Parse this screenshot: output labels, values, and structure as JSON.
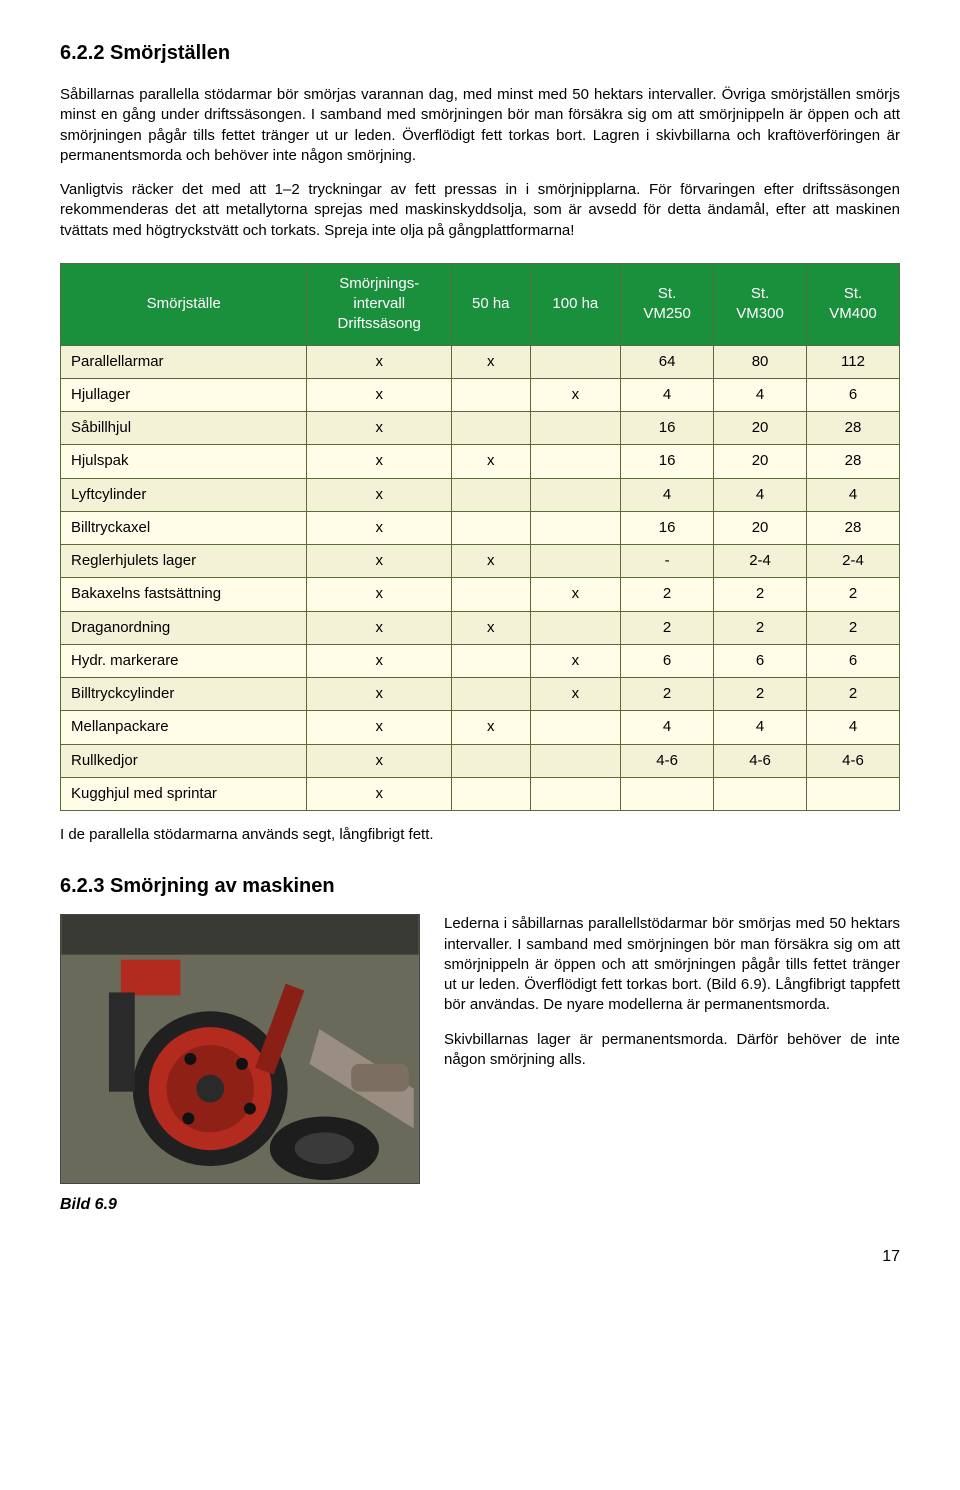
{
  "section": {
    "heading": "6.2.2  Smörjställen",
    "para1": "Såbillarnas parallella stödarmar bör smörjas varannan dag, med minst med 50 hektars intervaller. Övriga smörjställen smörjs minst en gång under driftssäsongen. I samband med smörjningen bör man försäkra sig om att smörjnippeln är öppen och att smörjningen pågår tills fettet tränger ut ur leden. Överflödigt fett torkas bort. Lagren i skivbillarna och kraftöverföringen är permanentsmorda och behöver inte någon smörjning.",
    "para2": "Vanligtvis räcker det med att 1–2 tryckningar av fett pressas in i smörjnipplarna. För förvaringen efter driftssäsongen rekommenderas det att metallytorna sprejas med maskinskyddsolja, som är avsedd för detta ändamål, efter att maskinen tvättats med högtryckstvätt och torkats. Spreja inte olja på gångplattformarna!"
  },
  "table": {
    "headers": {
      "c0": "Smörjställe",
      "c1": "Smörjnings-\nintervall\nDriftssäsong",
      "c2": "50 ha",
      "c3": "100 ha",
      "c4": "St.\nVM250",
      "c5": "St.\nVM300",
      "c6": "St.\nVM400"
    },
    "header_bg": "#1a8f3c",
    "header_fg": "#ffffff",
    "row_alt_colors": [
      "#f3f1d6",
      "#fffde8"
    ],
    "border_color": "#5a6b3a",
    "rows": [
      {
        "label": "Parallellarmar",
        "c1": "x",
        "c2": "x",
        "c3": "",
        "vm250": "64",
        "vm300": "80",
        "vm400": "112"
      },
      {
        "label": "Hjullager",
        "c1": "x",
        "c2": "",
        "c3": "x",
        "vm250": "4",
        "vm300": "4",
        "vm400": "6"
      },
      {
        "label": "Såbillhjul",
        "c1": "x",
        "c2": "",
        "c3": "",
        "vm250": "16",
        "vm300": "20",
        "vm400": "28"
      },
      {
        "label": "Hjulspak",
        "c1": "x",
        "c2": "x",
        "c3": "",
        "vm250": "16",
        "vm300": "20",
        "vm400": "28"
      },
      {
        "label": "Lyftcylinder",
        "c1": "x",
        "c2": "",
        "c3": "",
        "vm250": "4",
        "vm300": "4",
        "vm400": "4"
      },
      {
        "label": "Billtryckaxel",
        "c1": "x",
        "c2": "",
        "c3": "",
        "vm250": "16",
        "vm300": "20",
        "vm400": "28"
      },
      {
        "label": "Reglerhjulets lager",
        "c1": "x",
        "c2": "x",
        "c3": "",
        "vm250": "-",
        "vm300": "2-4",
        "vm400": "2-4"
      },
      {
        "label": "Bakaxelns fastsättning",
        "c1": "x",
        "c2": "",
        "c3": "x",
        "vm250": "2",
        "vm300": "2",
        "vm400": "2"
      },
      {
        "label": "Draganordning",
        "c1": "x",
        "c2": "x",
        "c3": "",
        "vm250": "2",
        "vm300": "2",
        "vm400": "2"
      },
      {
        "label": "Hydr. markerare",
        "c1": "x",
        "c2": "",
        "c3": "x",
        "vm250": "6",
        "vm300": "6",
        "vm400": "6"
      },
      {
        "label": "Billtryckcylinder",
        "c1": "x",
        "c2": "",
        "c3": "x",
        "vm250": "2",
        "vm300": "2",
        "vm400": "2"
      },
      {
        "label": "Mellanpackare",
        "c1": "x",
        "c2": "x",
        "c3": "",
        "vm250": "4",
        "vm300": "4",
        "vm400": "4"
      },
      {
        "label": "Rullkedjor",
        "c1": "x",
        "c2": "",
        "c3": "",
        "vm250": "4-6",
        "vm300": "4-6",
        "vm400": "4-6"
      },
      {
        "label": "Kugghjul med sprintar",
        "c1": "x",
        "c2": "",
        "c3": "",
        "vm250": "",
        "vm300": "",
        "vm400": ""
      }
    ],
    "after_note": "I de parallella stödarmarna används segt, långfibrigt fett."
  },
  "subsection": {
    "heading": "6.2.3 Smörjning av maskinen",
    "right_p1": "Lederna i såbillarnas parallellstödarmar bör smörjas med 50 hektars intervaller. I samband med smörjningen bör man försäkra sig om att smörjnippeln är öppen och att smörjningen pågår tills fettet tränger ut ur leden. Överflödigt fett torkas bort. (Bild 6.9). Långfibrigt tappfett bör användas. De nyare modellerna är permanentsmorda.",
    "right_p2": "Skivbillarnas lager är permanentsmorda. Därför behöver de inte någon smörjning alls.",
    "caption": "Bild 6.9"
  },
  "page_number": "17"
}
